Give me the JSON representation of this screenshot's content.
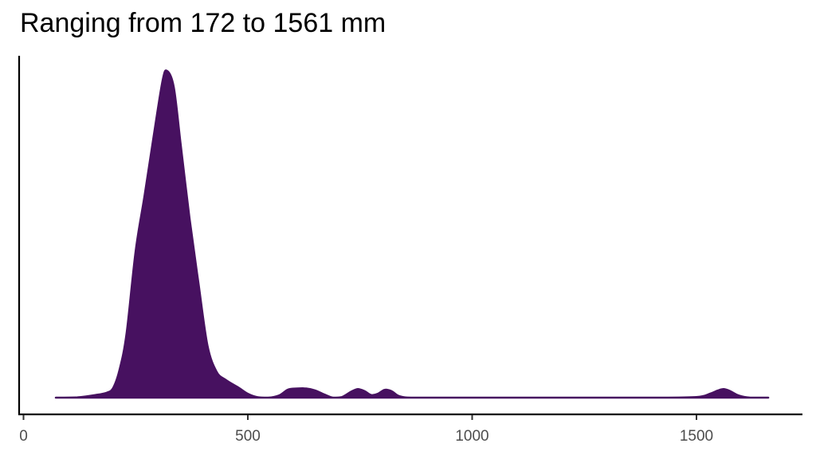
{
  "chart_data": {
    "type": "area",
    "subtype": "density",
    "title": "Ranging from 172 to 1561 mm",
    "xlabel": "",
    "ylabel": "",
    "xlim": [
      -10,
      1740
    ],
    "x_ticks": [
      0,
      500,
      1000,
      1500
    ],
    "x_tick_labels": [
      "0",
      "500",
      "1000",
      "1500"
    ],
    "y_ticks": [],
    "grid": false,
    "legend": null,
    "fill_color": "#471160",
    "line_color": "#471160",
    "series": [
      {
        "name": "density",
        "x": [
          72,
          120,
          160,
          185,
          200,
          215,
          230,
          250,
          270,
          290,
          310,
          320,
          335,
          350,
          370,
          390,
          410,
          430,
          450,
          480,
          500,
          520,
          545,
          570,
          590,
          610,
          630,
          650,
          670,
          690,
          710,
          730,
          745,
          760,
          775,
          790,
          805,
          820,
          835,
          850,
          870,
          900,
          1000,
          1200,
          1400,
          1500,
          1530,
          1548,
          1561,
          1575,
          1595,
          1620,
          1660
        ],
        "y": [
          0.0,
          0.001,
          0.008,
          0.015,
          0.03,
          0.09,
          0.2,
          0.45,
          0.62,
          0.8,
          0.97,
          1.0,
          0.95,
          0.78,
          0.55,
          0.35,
          0.16,
          0.08,
          0.055,
          0.03,
          0.012,
          0.002,
          0.0,
          0.007,
          0.025,
          0.028,
          0.028,
          0.022,
          0.01,
          0.0,
          0.002,
          0.018,
          0.026,
          0.02,
          0.008,
          0.012,
          0.024,
          0.02,
          0.006,
          0.001,
          0.0,
          0.0,
          0.0,
          0.0,
          0.0,
          0.002,
          0.012,
          0.022,
          0.026,
          0.02,
          0.006,
          0.0,
          0.0
        ]
      }
    ],
    "annotations": []
  }
}
